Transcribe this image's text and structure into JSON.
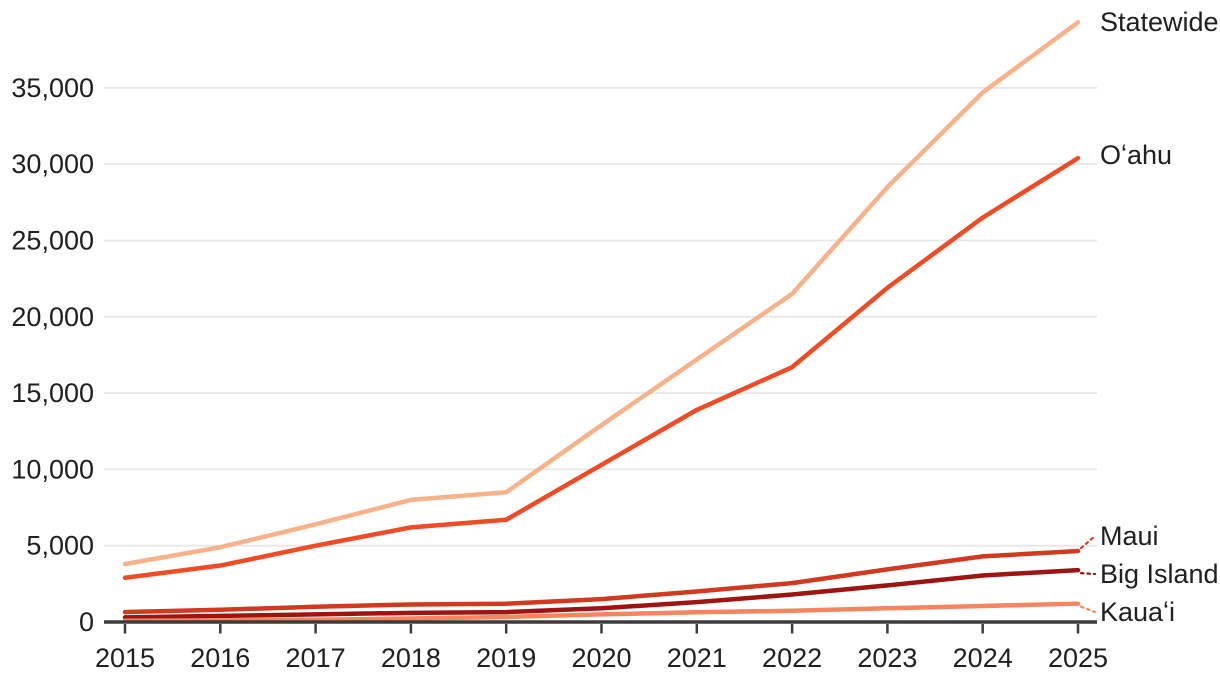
{
  "chart_data": {
    "type": "line",
    "title": "",
    "xlabel": "",
    "ylabel": "",
    "x": [
      2015,
      2016,
      2017,
      2018,
      2019,
      2020,
      2021,
      2022,
      2023,
      2024,
      2025
    ],
    "xtick_labels": [
      "2015",
      "2016",
      "2017",
      "2018",
      "2019",
      "2020",
      "2021",
      "2022",
      "2023",
      "2024",
      "2025"
    ],
    "yticks": [
      0,
      5000,
      10000,
      15000,
      20000,
      25000,
      30000,
      35000
    ],
    "ytick_labels": [
      "0",
      "5,000",
      "10,000",
      "15,000",
      "20,000",
      "25,000",
      "30,000",
      "35,000"
    ],
    "ylim": [
      0,
      39500
    ],
    "grid": true,
    "legend_position": "right-end-labels",
    "series": [
      {
        "name": "Statewide",
        "color": "#f8b289",
        "values": [
          3800,
          4900,
          6400,
          8000,
          8500,
          12900,
          17200,
          21500,
          28500,
          34700,
          39300
        ]
      },
      {
        "name": "Oʻahu",
        "color": "#f04b24",
        "values": [
          2900,
          3700,
          5000,
          6200,
          6700,
          10300,
          13900,
          16700,
          21900,
          26500,
          30400
        ]
      },
      {
        "name": "Maui",
        "color": "#d13a1f",
        "values": [
          650,
          800,
          1000,
          1150,
          1200,
          1500,
          2000,
          2550,
          3450,
          4300,
          4650
        ]
      },
      {
        "name": "Big Island",
        "color": "#9d1410",
        "values": [
          300,
          400,
          500,
          600,
          650,
          900,
          1300,
          1800,
          2400,
          3050,
          3400
        ]
      },
      {
        "name": "Kauaʻi",
        "color": "#f5855f",
        "values": [
          80,
          110,
          150,
          230,
          330,
          500,
          640,
          740,
          900,
          1050,
          1200
        ]
      }
    ]
  },
  "colors": {
    "background": "#ffffff",
    "gridline": "#e7e7e7",
    "axis": "#3c3c3c",
    "text": "#202020"
  }
}
